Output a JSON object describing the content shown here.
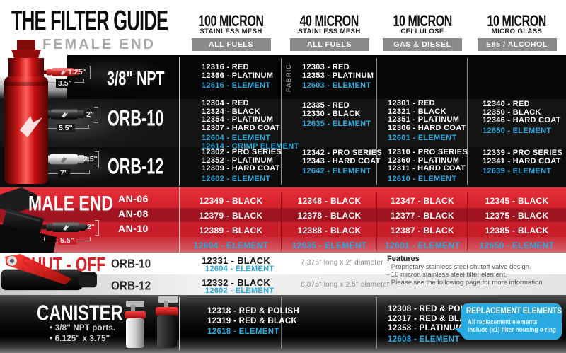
{
  "header": {
    "title": "THE FILTER GUIDE",
    "subtitle": "FEMALE END",
    "columns": [
      {
        "micron": "100 MICRON",
        "media": "STAINLESS MESH",
        "badge": "ALL FUELS"
      },
      {
        "micron": "40 MICRON",
        "media": "STAINLESS MESH",
        "badge": "ALL FUELS"
      },
      {
        "micron": "10 MICRON",
        "media": "CELLULOSE",
        "badge": "GAS & DIESEL"
      },
      {
        "micron": "10 MICRON",
        "media": "MICRO GLASS",
        "badge": "E85 / ALCOHOL"
      }
    ]
  },
  "female": {
    "rows": [
      {
        "label": "3/8\" NPT",
        "dim_height": "1.25\"",
        "dim_length": "3.5\"",
        "cells": [
          {
            "parts": [
              "12316 - RED",
              "12366 - PLATINUM"
            ],
            "elements": [
              "12616 - ELEMENT"
            ]
          },
          {
            "side_note": "FABRIC",
            "parts": [
              "12303 - RED",
              "12353 - PLATINUM"
            ],
            "elements": [
              "12603 - ELEMENT"
            ]
          },
          {
            "parts": [],
            "elements": []
          },
          {
            "parts": [],
            "elements": []
          }
        ]
      },
      {
        "label": "ORB-10",
        "dim_height": "2\"",
        "dim_length": "5.5\"",
        "cells": [
          {
            "parts": [
              "12304 - RED",
              "12324 - BLACK",
              "12354 - PLATINUM",
              "12307 - HARD COAT"
            ],
            "elements": [
              "12604 - ELEMENT",
              "12614 - CRIMP ELEMENT"
            ]
          },
          {
            "parts": [
              "12335 - RED",
              "12330 - BLACK"
            ],
            "elements": [
              "12635 - ELEMENT"
            ]
          },
          {
            "parts": [
              "12301 - RED",
              "12321 - BLACK",
              "12351 - PLATINUM",
              "12306 - HARD COAT"
            ],
            "elements": [
              "12601 - ELEMENT"
            ]
          },
          {
            "parts": [
              "12340 - RED",
              "12350 - BLACK",
              "12346 - HARD COAT"
            ],
            "elements": [
              "12650 - ELEMENT"
            ]
          }
        ]
      },
      {
        "label": "ORB-12",
        "dim_height": "2.5\"",
        "dim_length": "7\"",
        "cells": [
          {
            "parts": [
              "12302 - PRO SERIES",
              "12352 - PLATINUM",
              "12309 - HARD COAT"
            ],
            "elements": [
              "12602 - ELEMENT"
            ]
          },
          {
            "parts": [
              "12342 - PRO SERIES",
              "12343 - HARD COAT"
            ],
            "elements": [
              "12642 - ELEMENT"
            ]
          },
          {
            "parts": [
              "12310 - PRO SERIES",
              "12360 - PLATINUM",
              "12311 - HARD COAT"
            ],
            "elements": [
              "12610 - ELEMENT"
            ]
          },
          {
            "parts": [
              "12339 - PRO SERIES",
              "12341 - HARD COAT"
            ],
            "elements": [
              "12639 - ELEMENT"
            ]
          }
        ]
      }
    ]
  },
  "male": {
    "title": "MALE END",
    "dim_height": "2\"",
    "dim_length": "5.5\"",
    "rows": [
      {
        "label": "AN-06",
        "cells": [
          "12349 - BLACK",
          "12348 - BLACK",
          "12347 - BLACK",
          "12345 - BLACK"
        ]
      },
      {
        "label": "AN-08",
        "cells": [
          "12379 - BLACK",
          "12378 - BLACK",
          "12377 - BLACK",
          "12375 - BLACK"
        ]
      },
      {
        "label": "AN-10",
        "cells": [
          "12389 - BLACK",
          "12388 - BLACK",
          "12387 - BLACK",
          "12385 - BLACK"
        ]
      }
    ],
    "element_row": [
      "12604 - ELEMENT",
      "12635 - ELEMENT",
      "12601 - ELEMENT",
      "12650 - ELEMENT"
    ]
  },
  "shutoff": {
    "title": "SHUT - OFF",
    "rows": [
      {
        "label": "ORB-10",
        "part": "12331 - BLACK",
        "element": "12604 - ELEMENT",
        "desc": "7.375\" long x 2\" diameter"
      },
      {
        "label": "ORB-12",
        "part": "12332 - BLACK",
        "element": "12602 - ELEMENT",
        "desc": "8.875\" long x 2.5\" diameter"
      }
    ],
    "features": {
      "title": "Features",
      "items": [
        "- Proprietary stainless steel shutoff valve design.",
        "- 10 micron stainless steel filter element.",
        "- Please see the following page for more information"
      ]
    }
  },
  "canister": {
    "title": "CANISTER",
    "bullets": [
      "• 3/8\" NPT ports.",
      "• 6.125\" x 3.75\""
    ],
    "col_100_micron": {
      "parts": [
        "12318 - RED & POLISH",
        "12319 - RED & BLACK"
      ],
      "elements": [
        "12618 - ELEMENT"
      ]
    },
    "col_cellulose": {
      "parts": [
        "12308 - RED & POLISH",
        "12317 - RED & BLACK",
        "12358 - PLATINUM"
      ],
      "elements": [
        "12608 - ELEMENT"
      ]
    },
    "replacement": {
      "title": "REPLACEMENT ELEMENTS",
      "line1": "All replacement elements",
      "line2": "include (x1) filter housing o-ring"
    }
  },
  "colors": {
    "element_blue": "#29abe2",
    "male_red": "#ce202d",
    "badge_gray": "#8a8a8a",
    "shutoff_red": "#e01f26"
  }
}
